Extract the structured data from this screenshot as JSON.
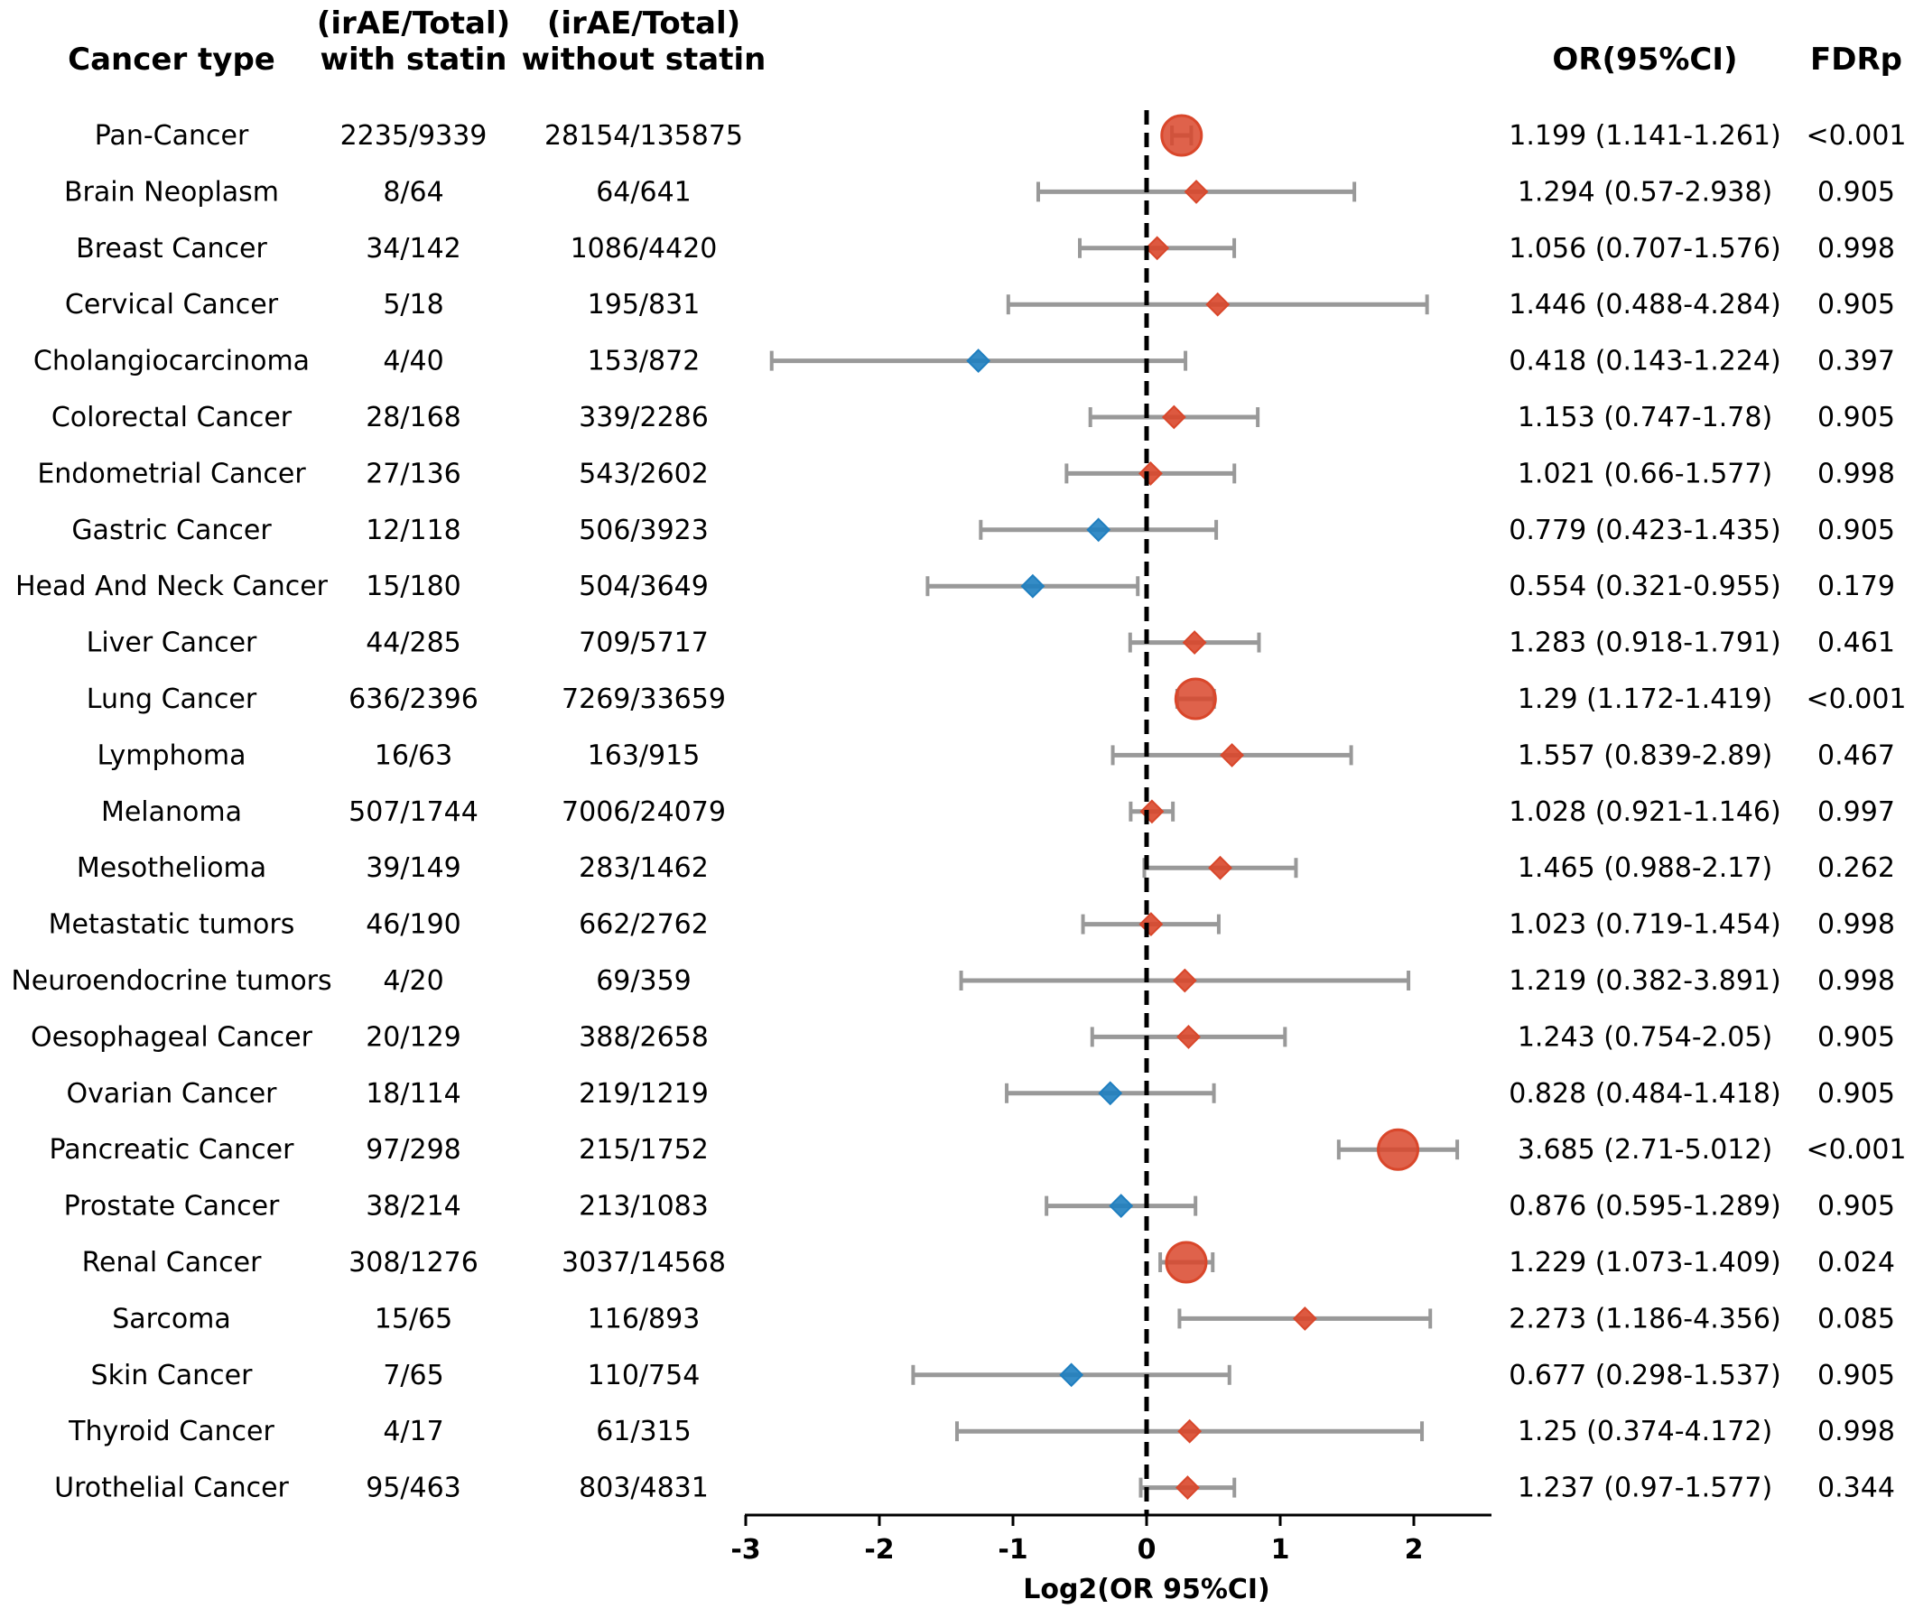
{
  "chart_data": {
    "type": "forest",
    "headers": {
      "cancer_type": "Cancer type",
      "with_statin": [
        "(irAE/Total)",
        "with statin"
      ],
      "without_statin": [
        "(irAE/Total)",
        "without statin"
      ],
      "or_ci": "OR(95%CI)",
      "fdrp": "FDRp"
    },
    "xlabel": "Log2(OR 95%CI)",
    "xlim": [
      -3.0,
      2.6
    ],
    "xticks": [
      -3,
      -2,
      -1,
      0,
      1,
      2
    ],
    "xtick_labels": [
      "-3",
      "-2",
      "-1",
      "0",
      "1",
      "2"
    ],
    "reference_line": 0,
    "colors": {
      "increased": "#d9472b",
      "decreased": "#1f7fc0",
      "ci": "#999999",
      "ref": "#000000"
    },
    "rows": [
      {
        "name": "Pan-Cancer",
        "with": "2235/9339",
        "without": "28154/135875",
        "or_text": "1.199 (1.141-1.261)",
        "fdr": "<0.001",
        "log2_or": 0.262,
        "lo": 0.19,
        "hi": 0.334,
        "marker": "circle"
      },
      {
        "name": "Brain Neoplasm",
        "with": "8/64",
        "without": "64/641",
        "or_text": "1.294 (0.57-2.938)",
        "fdr": "0.905",
        "log2_or": 0.372,
        "lo": -0.811,
        "hi": 1.555,
        "marker": "diamond"
      },
      {
        "name": "Breast Cancer",
        "with": "34/142",
        "without": "1086/4420",
        "or_text": "1.056 (0.707-1.576)",
        "fdr": "0.998",
        "log2_or": 0.079,
        "lo": -0.5,
        "hi": 0.656,
        "marker": "diamond"
      },
      {
        "name": "Cervical Cancer",
        "with": "5/18",
        "without": "195/831",
        "or_text": "1.446 (0.488-4.284)",
        "fdr": "0.905",
        "log2_or": 0.532,
        "lo": -1.035,
        "hi": 2.099,
        "marker": "diamond"
      },
      {
        "name": "Cholangiocarcinoma",
        "with": "4/40",
        "without": "153/872",
        "or_text": "0.418 (0.143-1.224)",
        "fdr": "0.397",
        "log2_or": -1.259,
        "lo": -2.806,
        "hi": 0.291,
        "marker": "diamond"
      },
      {
        "name": "Colorectal Cancer",
        "with": "28/168",
        "without": "339/2286",
        "or_text": "1.153 (0.747-1.78)",
        "fdr": "0.905",
        "log2_or": 0.205,
        "lo": -0.421,
        "hi": 0.832,
        "marker": "diamond"
      },
      {
        "name": "Endometrial Cancer",
        "with": "27/136",
        "without": "543/2602",
        "or_text": "1.021 (0.66-1.577)",
        "fdr": "0.998",
        "log2_or": 0.03,
        "lo": -0.599,
        "hi": 0.657,
        "marker": "diamond"
      },
      {
        "name": "Gastric Cancer",
        "with": "12/118",
        "without": "506/3923",
        "or_text": "0.779 (0.423-1.435)",
        "fdr": "0.905",
        "log2_or": -0.36,
        "lo": -1.241,
        "hi": 0.521,
        "marker": "diamond"
      },
      {
        "name": "Head And Neck Cancer",
        "with": "15/180",
        "without": "504/3649",
        "or_text": "0.554 (0.321-0.955)",
        "fdr": "0.179",
        "log2_or": -0.852,
        "lo": -1.639,
        "hi": -0.066,
        "marker": "diamond"
      },
      {
        "name": "Liver Cancer",
        "with": "44/285",
        "without": "709/5717",
        "or_text": "1.283 (0.918-1.791)",
        "fdr": "0.461",
        "log2_or": 0.359,
        "lo": -0.123,
        "hi": 0.841,
        "marker": "diamond"
      },
      {
        "name": "Lung Cancer",
        "with": "636/2396",
        "without": "7269/33659",
        "or_text": "1.29 (1.172-1.419)",
        "fdr": "<0.001",
        "log2_or": 0.367,
        "lo": 0.229,
        "hi": 0.505,
        "marker": "circle"
      },
      {
        "name": "Lymphoma",
        "with": "16/63",
        "without": "163/915",
        "or_text": "1.557 (0.839-2.89)",
        "fdr": "0.467",
        "log2_or": 0.639,
        "lo": -0.253,
        "hi": 1.531,
        "marker": "diamond"
      },
      {
        "name": "Melanoma",
        "with": "507/1744",
        "without": "7006/24079",
        "or_text": "1.028 (0.921-1.146)",
        "fdr": "0.997",
        "log2_or": 0.04,
        "lo": -0.119,
        "hi": 0.197,
        "marker": "diamond"
      },
      {
        "name": "Mesothelioma",
        "with": "39/149",
        "without": "283/1462",
        "or_text": "1.465 (0.988-2.17)",
        "fdr": "0.262",
        "log2_or": 0.551,
        "lo": -0.017,
        "hi": 1.118,
        "marker": "diamond"
      },
      {
        "name": "Metastatic tumors",
        "with": "46/190",
        "without": "662/2762",
        "or_text": "1.023 (0.719-1.454)",
        "fdr": "0.998",
        "log2_or": 0.033,
        "lo": -0.476,
        "hi": 0.54,
        "marker": "diamond"
      },
      {
        "name": "Neuroendocrine tumors",
        "with": "4/20",
        "without": "69/359",
        "or_text": "1.219 (0.382-3.891)",
        "fdr": "0.998",
        "log2_or": 0.286,
        "lo": -1.388,
        "hi": 1.96,
        "marker": "diamond"
      },
      {
        "name": "Oesophageal Cancer",
        "with": "20/129",
        "without": "388/2658",
        "or_text": "1.243 (0.754-2.05)",
        "fdr": "0.905",
        "log2_or": 0.314,
        "lo": -0.407,
        "hi": 1.036,
        "marker": "diamond"
      },
      {
        "name": "Ovarian Cancer",
        "with": "18/114",
        "without": "219/1219",
        "or_text": "0.828 (0.484-1.418)",
        "fdr": "0.905",
        "log2_or": -0.272,
        "lo": -1.047,
        "hi": 0.504,
        "marker": "diamond"
      },
      {
        "name": "Pancreatic Cancer",
        "with": "97/298",
        "without": "215/1752",
        "or_text": "3.685 (2.71-5.012)",
        "fdr": "<0.001",
        "log2_or": 1.882,
        "lo": 1.438,
        "hi": 2.325,
        "marker": "circle"
      },
      {
        "name": "Prostate Cancer",
        "with": "38/214",
        "without": "213/1083",
        "or_text": "0.876 (0.595-1.289)",
        "fdr": "0.905",
        "log2_or": -0.191,
        "lo": -0.749,
        "hi": 0.366,
        "marker": "diamond"
      },
      {
        "name": "Renal Cancer",
        "with": "308/1276",
        "without": "3037/14568",
        "or_text": "1.229 (1.073-1.409)",
        "fdr": "0.024",
        "log2_or": 0.297,
        "lo": 0.102,
        "hi": 0.495,
        "marker": "circle"
      },
      {
        "name": "Sarcoma",
        "with": "15/65",
        "without": "116/893",
        "or_text": "2.273 (1.186-4.356)",
        "fdr": "0.085",
        "log2_or": 1.185,
        "lo": 0.246,
        "hi": 2.123,
        "marker": "diamond"
      },
      {
        "name": "Skin Cancer",
        "with": "7/65",
        "without": "110/754",
        "or_text": "0.677 (0.298-1.537)",
        "fdr": "0.905",
        "log2_or": -0.563,
        "lo": -1.747,
        "hi": 0.62,
        "marker": "diamond"
      },
      {
        "name": "Thyroid Cancer",
        "with": "4/17",
        "without": "61/315",
        "or_text": "1.25 (0.374-4.172)",
        "fdr": "0.998",
        "log2_or": 0.322,
        "lo": -1.419,
        "hi": 2.061,
        "marker": "diamond"
      },
      {
        "name": "Urothelial Cancer",
        "with": "95/463",
        "without": "803/4831",
        "or_text": "1.237 (0.97-1.577)",
        "fdr": "0.344",
        "log2_or": 0.307,
        "lo": -0.044,
        "hi": 0.657,
        "marker": "diamond"
      }
    ]
  }
}
